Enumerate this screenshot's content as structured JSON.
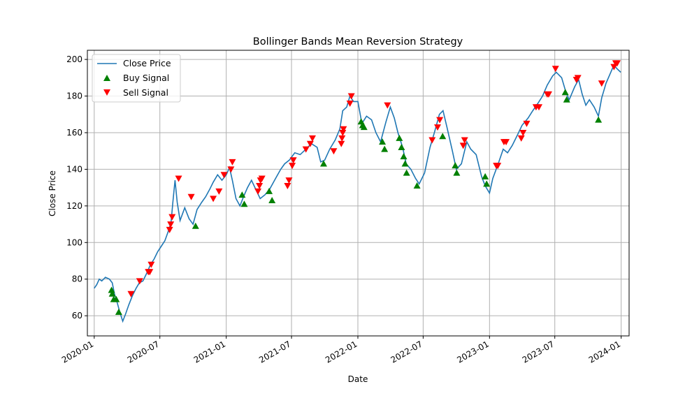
{
  "chart_data": {
    "type": "line",
    "title": "Bollinger Bands Mean Reversion Strategy",
    "xlabel": "Date",
    "ylabel": "Close Price",
    "grid": true,
    "legend_position": "top-left",
    "xlim": [
      "2019-12-13",
      "2024-01-23"
    ],
    "ylim": [
      49,
      205
    ],
    "x_ticks": [
      "2020-01",
      "2020-07",
      "2021-01",
      "2021-07",
      "2022-01",
      "2022-07",
      "2023-01",
      "2023-07",
      "2024-01"
    ],
    "y_ticks": [
      60,
      80,
      100,
      120,
      140,
      160,
      180,
      200
    ],
    "colors": {
      "line": "#1f77b4",
      "buy": "#008000",
      "sell": "#ff0000",
      "grid": "#b0b0b0"
    },
    "series": [
      {
        "name": "Close Price",
        "points": [
          [
            "2020-01-01",
            75
          ],
          [
            "2020-01-08",
            77
          ],
          [
            "2020-01-15",
            80
          ],
          [
            "2020-01-22",
            79
          ],
          [
            "2020-02-01",
            81
          ],
          [
            "2020-02-12",
            80
          ],
          [
            "2020-02-20",
            78
          ],
          [
            "2020-02-26",
            72
          ],
          [
            "2020-03-05",
            67
          ],
          [
            "2020-03-12",
            62
          ],
          [
            "2020-03-20",
            57
          ],
          [
            "2020-03-28",
            61
          ],
          [
            "2020-04-06",
            66
          ],
          [
            "2020-04-16",
            71
          ],
          [
            "2020-04-26",
            75
          ],
          [
            "2020-05-05",
            78
          ],
          [
            "2020-05-15",
            79
          ],
          [
            "2020-05-25",
            83
          ],
          [
            "2020-06-05",
            88
          ],
          [
            "2020-06-15",
            91
          ],
          [
            "2020-06-25",
            95
          ],
          [
            "2020-07-05",
            98
          ],
          [
            "2020-07-15",
            101
          ],
          [
            "2020-07-24",
            106
          ],
          [
            "2020-08-01",
            111
          ],
          [
            "2020-08-06",
            122
          ],
          [
            "2020-08-12",
            134
          ],
          [
            "2020-08-18",
            122
          ],
          [
            "2020-08-26",
            112
          ],
          [
            "2020-09-08",
            119
          ],
          [
            "2020-09-20",
            113
          ],
          [
            "2020-10-01",
            110
          ],
          [
            "2020-10-12",
            118
          ],
          [
            "2020-10-25",
            122
          ],
          [
            "2020-11-05",
            125
          ],
          [
            "2020-11-16",
            129
          ],
          [
            "2020-11-26",
            133
          ],
          [
            "2020-12-08",
            137
          ],
          [
            "2020-12-20",
            134
          ],
          [
            "2021-01-01",
            137
          ],
          [
            "2021-01-10",
            141
          ],
          [
            "2021-01-18",
            134
          ],
          [
            "2021-01-28",
            124
          ],
          [
            "2021-02-08",
            120
          ],
          [
            "2021-02-18",
            125
          ],
          [
            "2021-03-01",
            130
          ],
          [
            "2021-03-12",
            134
          ],
          [
            "2021-03-24",
            129
          ],
          [
            "2021-04-05",
            124
          ],
          [
            "2021-04-18",
            126
          ],
          [
            "2021-05-01",
            129
          ],
          [
            "2021-05-15",
            134
          ],
          [
            "2021-06-01",
            140
          ],
          [
            "2021-06-12",
            143
          ],
          [
            "2021-06-25",
            145
          ],
          [
            "2021-07-10",
            149
          ],
          [
            "2021-07-25",
            148
          ],
          [
            "2021-08-10",
            151
          ],
          [
            "2021-08-25",
            154
          ],
          [
            "2021-09-10",
            152
          ],
          [
            "2021-09-20",
            144
          ],
          [
            "2021-10-01",
            145
          ],
          [
            "2021-10-15",
            151
          ],
          [
            "2021-10-30",
            156
          ],
          [
            "2021-11-12",
            162
          ],
          [
            "2021-11-20",
            172
          ],
          [
            "2021-12-01",
            174
          ],
          [
            "2021-12-10",
            180
          ],
          [
            "2021-12-20",
            177
          ],
          [
            "2022-01-01",
            177
          ],
          [
            "2022-01-12",
            165
          ],
          [
            "2022-01-25",
            169
          ],
          [
            "2022-02-08",
            167
          ],
          [
            "2022-02-20",
            160
          ],
          [
            "2022-03-05",
            155
          ],
          [
            "2022-03-20",
            166
          ],
          [
            "2022-04-01",
            174
          ],
          [
            "2022-04-12",
            168
          ],
          [
            "2022-04-22",
            160
          ],
          [
            "2022-05-05",
            152
          ],
          [
            "2022-05-15",
            143
          ],
          [
            "2022-05-28",
            140
          ],
          [
            "2022-06-10",
            135
          ],
          [
            "2022-06-20",
            132
          ],
          [
            "2022-07-05",
            138
          ],
          [
            "2022-07-20",
            152
          ],
          [
            "2022-08-01",
            160
          ],
          [
            "2022-08-15",
            170
          ],
          [
            "2022-08-25",
            172
          ],
          [
            "2022-09-05",
            163
          ],
          [
            "2022-09-20",
            150
          ],
          [
            "2022-10-01",
            140
          ],
          [
            "2022-10-15",
            143
          ],
          [
            "2022-10-30",
            155
          ],
          [
            "2022-11-10",
            151
          ],
          [
            "2022-11-25",
            148
          ],
          [
            "2022-12-10",
            136
          ],
          [
            "2022-12-20",
            131
          ],
          [
            "2023-01-01",
            127
          ],
          [
            "2023-01-10",
            135
          ],
          [
            "2023-01-25",
            143
          ],
          [
            "2023-02-08",
            151
          ],
          [
            "2023-02-20",
            149
          ],
          [
            "2023-03-05",
            153
          ],
          [
            "2023-03-20",
            159
          ],
          [
            "2023-04-01",
            164
          ],
          [
            "2023-04-18",
            168
          ],
          [
            "2023-05-01",
            172
          ],
          [
            "2023-05-15",
            176
          ],
          [
            "2023-05-28",
            180
          ],
          [
            "2023-06-10",
            186
          ],
          [
            "2023-06-25",
            191
          ],
          [
            "2023-07-05",
            193
          ],
          [
            "2023-07-20",
            190
          ],
          [
            "2023-08-01",
            182
          ],
          [
            "2023-08-10",
            178
          ],
          [
            "2023-08-25",
            185
          ],
          [
            "2023-09-05",
            189
          ],
          [
            "2023-09-15",
            181
          ],
          [
            "2023-09-25",
            175
          ],
          [
            "2023-10-05",
            178
          ],
          [
            "2023-10-18",
            174
          ],
          [
            "2023-10-30",
            169
          ],
          [
            "2023-11-08",
            179
          ],
          [
            "2023-11-20",
            187
          ],
          [
            "2023-12-01",
            192
          ],
          [
            "2023-12-12",
            197
          ],
          [
            "2023-12-20",
            195
          ],
          [
            "2023-12-31",
            193
          ]
        ]
      },
      {
        "name": "Buy Signal",
        "marker": "triangle-up",
        "points": [
          [
            "2020-02-18",
            74
          ],
          [
            "2020-02-20",
            72
          ],
          [
            "2020-02-24",
            69
          ],
          [
            "2020-03-02",
            69
          ],
          [
            "2020-03-09",
            62
          ],
          [
            "2020-10-08",
            109
          ],
          [
            "2021-02-14",
            126
          ],
          [
            "2021-02-20",
            121
          ],
          [
            "2021-04-30",
            128
          ],
          [
            "2021-05-08",
            123
          ],
          [
            "2021-09-28",
            143
          ],
          [
            "2022-01-10",
            166
          ],
          [
            "2022-01-14",
            164
          ],
          [
            "2022-01-18",
            163
          ],
          [
            "2022-03-10",
            155
          ],
          [
            "2022-03-16",
            151
          ],
          [
            "2022-04-26",
            157
          ],
          [
            "2022-05-02",
            152
          ],
          [
            "2022-05-08",
            147
          ],
          [
            "2022-05-12",
            143
          ],
          [
            "2022-05-16",
            138
          ],
          [
            "2022-06-14",
            131
          ],
          [
            "2022-08-24",
            158
          ],
          [
            "2022-09-28",
            142
          ],
          [
            "2022-10-02",
            138
          ],
          [
            "2022-12-20",
            136
          ],
          [
            "2022-12-24",
            132
          ],
          [
            "2023-07-30",
            182
          ],
          [
            "2023-08-03",
            178
          ],
          [
            "2023-10-30",
            167
          ]
        ]
      },
      {
        "name": "Sell Signal",
        "marker": "triangle-down",
        "points": [
          [
            "2020-04-12",
            72
          ],
          [
            "2020-05-06",
            79
          ],
          [
            "2020-05-30",
            84
          ],
          [
            "2020-06-03",
            84
          ],
          [
            "2020-06-07",
            88
          ],
          [
            "2020-07-28",
            107
          ],
          [
            "2020-07-31",
            110
          ],
          [
            "2020-08-04",
            114
          ],
          [
            "2020-08-22",
            135
          ],
          [
            "2020-09-26",
            125
          ],
          [
            "2020-11-26",
            124
          ],
          [
            "2020-12-12",
            128
          ],
          [
            "2020-12-26",
            137
          ],
          [
            "2021-01-14",
            140
          ],
          [
            "2021-01-18",
            144
          ],
          [
            "2021-03-30",
            128
          ],
          [
            "2021-04-03",
            131
          ],
          [
            "2021-04-06",
            134
          ],
          [
            "2021-04-10",
            135
          ],
          [
            "2021-06-20",
            131
          ],
          [
            "2021-06-24",
            134
          ],
          [
            "2021-07-03",
            142
          ],
          [
            "2021-07-06",
            145
          ],
          [
            "2021-08-10",
            151
          ],
          [
            "2021-08-22",
            154
          ],
          [
            "2021-08-28",
            157
          ],
          [
            "2021-10-26",
            150
          ],
          [
            "2021-11-16",
            154
          ],
          [
            "2021-11-18",
            157
          ],
          [
            "2021-11-20",
            160
          ],
          [
            "2021-11-22",
            162
          ],
          [
            "2021-12-10",
            176
          ],
          [
            "2021-12-14",
            180
          ],
          [
            "2022-03-24",
            175
          ],
          [
            "2022-07-26",
            156
          ],
          [
            "2022-08-10",
            163
          ],
          [
            "2022-08-16",
            167
          ],
          [
            "2022-10-20",
            153
          ],
          [
            "2022-10-24",
            156
          ],
          [
            "2023-01-20",
            142
          ],
          [
            "2023-01-24",
            142
          ],
          [
            "2023-02-10",
            155
          ],
          [
            "2023-02-16",
            155
          ],
          [
            "2023-03-30",
            157
          ],
          [
            "2023-04-04",
            160
          ],
          [
            "2023-04-14",
            165
          ],
          [
            "2023-05-10",
            174
          ],
          [
            "2023-05-18",
            174
          ],
          [
            "2023-06-10",
            181
          ],
          [
            "2023-06-14",
            181
          ],
          [
            "2023-07-03",
            195
          ],
          [
            "2023-08-30",
            189
          ],
          [
            "2023-09-03",
            190
          ],
          [
            "2023-11-08",
            187
          ],
          [
            "2023-12-12",
            196
          ],
          [
            "2023-12-17",
            198
          ],
          [
            "2023-12-21",
            198
          ]
        ]
      }
    ]
  }
}
